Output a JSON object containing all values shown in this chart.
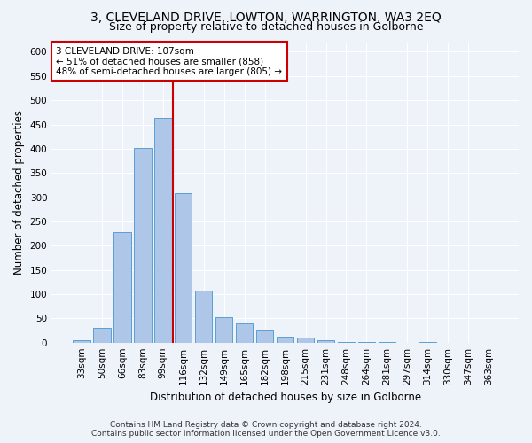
{
  "title_line1": "3, CLEVELAND DRIVE, LOWTON, WARRINGTON, WA3 2EQ",
  "title_line2": "Size of property relative to detached houses in Golborne",
  "xlabel": "Distribution of detached houses by size in Golborne",
  "ylabel": "Number of detached properties",
  "categories": [
    "33sqm",
    "50sqm",
    "66sqm",
    "83sqm",
    "99sqm",
    "116sqm",
    "132sqm",
    "149sqm",
    "165sqm",
    "182sqm",
    "198sqm",
    "215sqm",
    "231sqm",
    "248sqm",
    "264sqm",
    "281sqm",
    "297sqm",
    "314sqm",
    "330sqm",
    "347sqm",
    "363sqm"
  ],
  "values": [
    5,
    30,
    228,
    401,
    464,
    308,
    108,
    53,
    39,
    25,
    12,
    10,
    5,
    2,
    2,
    2,
    0,
    1,
    0,
    0,
    0
  ],
  "bar_color": "#aec6e8",
  "bar_edge_color": "#5a9fd4",
  "vline_x": 4.5,
  "vline_color": "#cc0000",
  "annotation_line1": "3 CLEVELAND DRIVE: 107sqm",
  "annotation_line2": "← 51% of detached houses are smaller (858)",
  "annotation_line3": "48% of semi-detached houses are larger (805) →",
  "annotation_box_color": "#ffffff",
  "annotation_box_edge": "#cc0000",
  "ylim": [
    0,
    620
  ],
  "yticks": [
    0,
    50,
    100,
    150,
    200,
    250,
    300,
    350,
    400,
    450,
    500,
    550,
    600
  ],
  "background_color": "#eef2f9",
  "grid_color": "#ffffff",
  "footer_line1": "Contains HM Land Registry data © Crown copyright and database right 2024.",
  "footer_line2": "Contains public sector information licensed under the Open Government Licence v3.0.",
  "title_fontsize": 10,
  "subtitle_fontsize": 9,
  "axis_label_fontsize": 8.5,
  "tick_fontsize": 7.5,
  "annotation_fontsize": 7.5,
  "footer_fontsize": 6.5
}
